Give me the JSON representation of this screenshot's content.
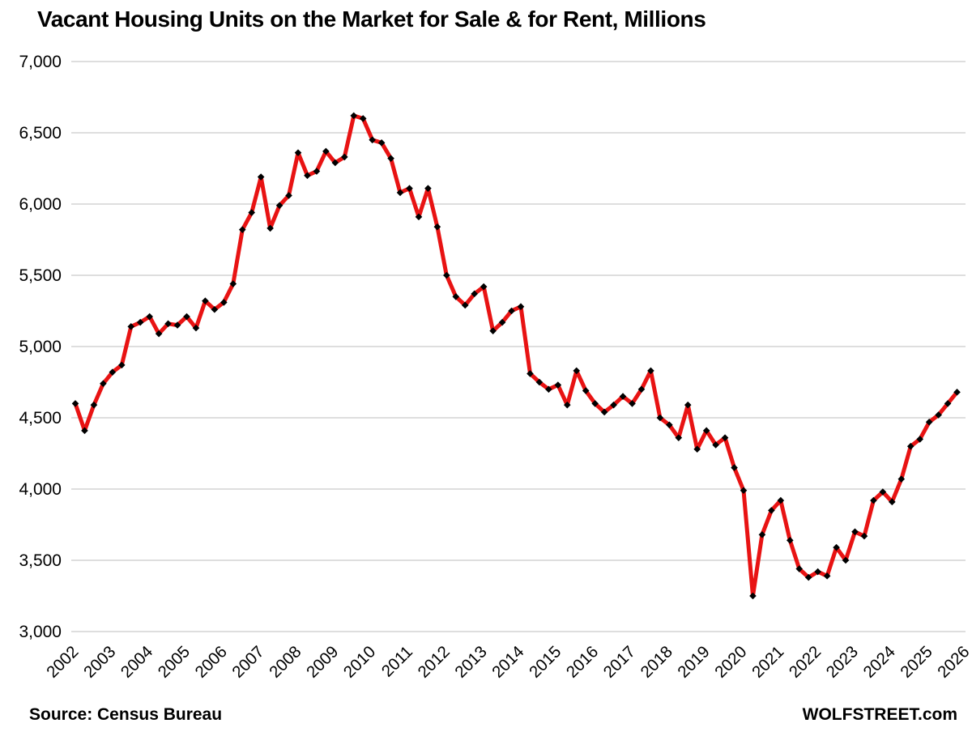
{
  "title": "Vacant Housing Units on the Market for Sale & for Rent, Millions",
  "footer": {
    "source_label": "Source: Census Bureau",
    "brand_label": "WOLFSTREET.com"
  },
  "colors": {
    "line": "#e81313",
    "marker": "#000000",
    "grid": "#d9d9d9",
    "text": "#000000",
    "background": "#ffffff"
  },
  "chart_data": {
    "type": "line",
    "title": "Vacant Housing Units on the Market for Sale & for Rent, Millions",
    "xlabel": "",
    "ylabel": "",
    "units": "thousands of housing units",
    "frequency": "quarterly",
    "start_period": "2002Q1",
    "end_period": "2025Q4",
    "legend": "none",
    "grid": "horizontal",
    "marker": "black-diamond",
    "ylim": [
      3000,
      7000
    ],
    "y_ticks": [
      7000,
      6500,
      6000,
      5500,
      5000,
      4500,
      4000,
      3500,
      3000
    ],
    "y_tick_labels": [
      "7,000",
      "6,500",
      "6,000",
      "5,500",
      "5,000",
      "4,500",
      "4,000",
      "3,500",
      "3,000"
    ],
    "x_tick_labels": [
      "2002",
      "2003",
      "2004",
      "2005",
      "2006",
      "2007",
      "2008",
      "2009",
      "2010",
      "2011",
      "2012",
      "2013",
      "2014",
      "2015",
      "2016",
      "2017",
      "2018",
      "2019",
      "2020",
      "2021",
      "2022",
      "2023",
      "2024",
      "2025",
      "2026"
    ],
    "series": [
      {
        "name": "Vacant housing units for sale & for rent",
        "values": [
          4600,
          4410,
          4590,
          4740,
          4820,
          4870,
          5140,
          5170,
          5210,
          5090,
          5160,
          5150,
          5210,
          5130,
          5320,
          5260,
          5310,
          5440,
          5820,
          5940,
          6190,
          5830,
          5990,
          6060,
          6360,
          6200,
          6230,
          6370,
          6290,
          6330,
          6620,
          6600,
          6450,
          6430,
          6320,
          6080,
          6110,
          5910,
          6110,
          5840,
          5500,
          5350,
          5290,
          5370,
          5420,
          5110,
          5170,
          5250,
          5280,
          4810,
          4750,
          4700,
          4730,
          4590,
          4830,
          4690,
          4600,
          4540,
          4590,
          4650,
          4600,
          4700,
          4830,
          4500,
          4450,
          4360,
          4590,
          4280,
          4410,
          4310,
          4360,
          4150,
          3990,
          3250,
          3680,
          3850,
          3920,
          3640,
          3440,
          3380,
          3420,
          3390,
          3590,
          3500,
          3700,
          3670,
          3920,
          3980,
          3910,
          4070,
          4300,
          4350,
          4470,
          4520,
          4600,
          4680
        ]
      }
    ]
  }
}
